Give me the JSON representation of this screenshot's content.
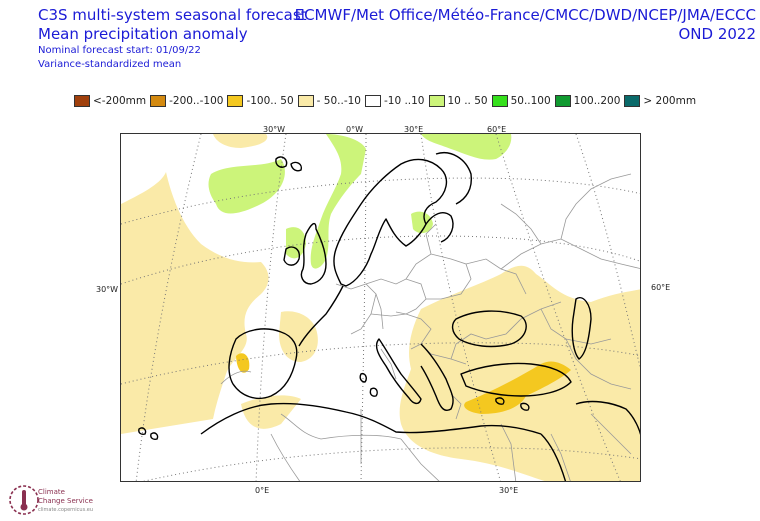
{
  "header": {
    "title_line1": "C3S multi-system seasonal forecast",
    "title_line2": "Mean precipitation anomaly",
    "start_text": "Nominal forecast start: 01/09/22",
    "method_text": "Variance-standardized mean",
    "sources": "ECMWF/Met Office/Météo-France/CMCC/DWD/NCEP/JMA/ECCC",
    "period": "OND 2022"
  },
  "legend": [
    {
      "label": "<-200mm",
      "color": "#a0400c"
    },
    {
      "label": "-200..-100",
      "color": "#d48a10"
    },
    {
      "label": "-100.. 50",
      "color": "#f4c820"
    },
    {
      "label": "- 50..-10",
      "color": "#faeaa8"
    },
    {
      "label": "-10 ..10",
      "color": "#ffffff"
    },
    {
      "label": "10 .. 50",
      "color": "#ccf47a"
    },
    {
      "label": "50..100",
      "color": "#36e01c"
    },
    {
      "label": "100..200",
      "color": "#109a30"
    },
    {
      "label": "> 200mm",
      "color": "#0a6a6a"
    }
  ],
  "axis_labels": {
    "top": [
      "30°W",
      "0°W",
      "30°E",
      "60°E"
    ],
    "left": "30°W",
    "right": "60°E",
    "bottom": [
      "0°E",
      "30°E"
    ]
  },
  "logo": {
    "line1": "Climate",
    "line2": "Change Service",
    "line3": "climate.copernicus.eu"
  }
}
